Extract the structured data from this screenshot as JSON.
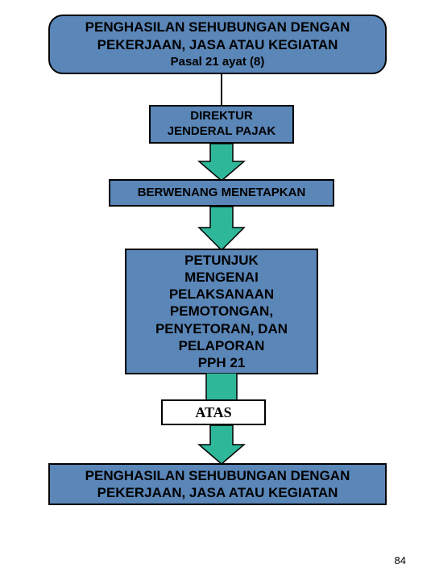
{
  "page_number": "84",
  "colors": {
    "box_fill": "#5a86b8",
    "box_border": "#000000",
    "arrow_fill": "#2fb79a",
    "arrow_border": "#000000",
    "background": "#ffffff",
    "text": "#000000"
  },
  "diagram": {
    "type": "flowchart",
    "header": {
      "title": "PENGHASILAN SEHUBUNGAN DENGAN PEKERJAAN, JASA ATAU KEGIATAN",
      "subtitle": "Pasal 21 ayat (8)",
      "shape": "rounded-rect",
      "fill": "#5a86b8",
      "font_weight": "bold",
      "title_fontsize": 17,
      "subtitle_fontsize": 15
    },
    "nodes": [
      {
        "id": "n2",
        "label": "DIREKTUR\nJENDERAL PAJAK",
        "fill": "#5a86b8",
        "fontsize": 15,
        "font_weight": "bold"
      },
      {
        "id": "n3",
        "label": "BERWENANG MENETAPKAN",
        "fill": "#5a86b8",
        "fontsize": 15,
        "font_weight": "bold"
      },
      {
        "id": "n4",
        "label": "PETUNJUK\nMENGENAI\nPELAKSANAAN\nPEMOTONGAN,\nPENYETORAN, DAN\nPELAPORAN\nPPH 21",
        "fill": "#5a86b8",
        "fontsize": 17,
        "font_weight": "bold"
      },
      {
        "id": "n5",
        "label": "ATAS",
        "fill": "#ffffff",
        "fontsize": 18,
        "font_weight": "bold",
        "font_family": "serif"
      },
      {
        "id": "n6",
        "label": "PENGHASILAN SEHUBUNGAN DENGAN PEKERJAAN, JASA ATAU KEGIATAN",
        "fill": "#5a86b8",
        "fontsize": 17,
        "font_weight": "bold"
      }
    ],
    "edges": [
      {
        "from": "header",
        "to": "n2",
        "type": "line"
      },
      {
        "from": "n2",
        "to": "n3",
        "type": "block-arrow",
        "fill": "#2fb79a"
      },
      {
        "from": "n3",
        "to": "n4",
        "type": "block-arrow",
        "fill": "#2fb79a"
      },
      {
        "from": "n4",
        "to": "n5",
        "type": "block-arrow",
        "fill": "#2fb79a",
        "behind": true
      },
      {
        "from": "n5",
        "to": "n6",
        "type": "block-arrow",
        "fill": "#2fb79a"
      }
    ],
    "arrow_style": {
      "fill": "#2fb79a",
      "border": "#000000",
      "shaft_width": 28,
      "head_width": 58,
      "border_width": 1.5
    }
  }
}
